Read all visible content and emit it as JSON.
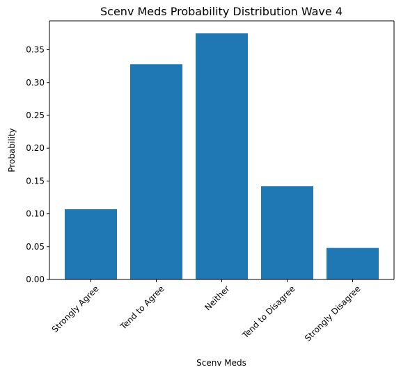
{
  "chart_data": {
    "type": "bar",
    "title": "Scenv Meds Probability Distribution Wave 4",
    "xlabel": "Scenv Meds",
    "ylabel": "Probability",
    "categories": [
      "Strongly Agree",
      "Tend to Agree",
      "Neither",
      "Tend to Disagree",
      "Strongly Disagree"
    ],
    "values": [
      0.107,
      0.328,
      0.375,
      0.142,
      0.048
    ],
    "ylim": [
      0,
      0.394
    ],
    "yticks": [
      0.0,
      0.05,
      0.1,
      0.15,
      0.2,
      0.25,
      0.3,
      0.35
    ],
    "ytick_labels": [
      "0.00",
      "0.05",
      "0.10",
      "0.15",
      "0.20",
      "0.25",
      "0.30",
      "0.35"
    ],
    "bar_color": "#1f77b4",
    "grid": false,
    "legend": "none"
  }
}
